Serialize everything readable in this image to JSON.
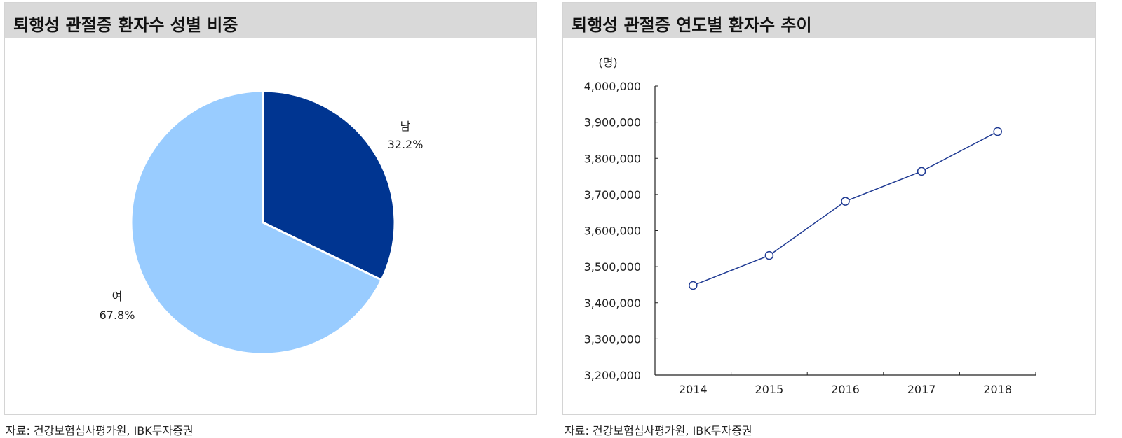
{
  "left_panel": {
    "title": "퇴행성 관절증 환자수 성별 비중",
    "source": "자료: 건강보험심사평가원, IBK투자증권"
  },
  "right_panel": {
    "title": "퇴행성 관절증 연도별 환자수 추이",
    "source": "자료: 건강보험심사평가원, IBK투자증권"
  },
  "chart_data": [
    {
      "type": "pie",
      "title": "퇴행성 관절증 환자수 성별 비중",
      "slices": [
        {
          "label": "남",
          "value": 32.2,
          "value_label": "32.2%",
          "color": "#003591"
        },
        {
          "label": "여",
          "value": 67.8,
          "value_label": "67.8%",
          "color": "#99ccff"
        }
      ],
      "start_angle_deg": 0,
      "direction": "clockwise"
    },
    {
      "type": "line",
      "title": "퇴행성 관절증 연도별 환자수 추이",
      "unit_label": "(명)",
      "x": [
        "2014",
        "2015",
        "2016",
        "2017",
        "2018"
      ],
      "series": [
        {
          "values": [
            3448000,
            3531000,
            3681000,
            3764000,
            3874000
          ],
          "color": "#1f3a93"
        }
      ],
      "ylim": [
        3200000,
        4000000
      ],
      "yticks": [
        3200000,
        3300000,
        3400000,
        3500000,
        3600000,
        3700000,
        3800000,
        3900000,
        4000000
      ],
      "ytick_labels": [
        "3,200,000",
        "3,300,000",
        "3,400,000",
        "3,500,000",
        "3,600,000",
        "3,700,000",
        "3,800,000",
        "3,900,000",
        "4,000,000"
      ],
      "grid": false,
      "legend": "none",
      "marker": "hollow-circle"
    }
  ]
}
